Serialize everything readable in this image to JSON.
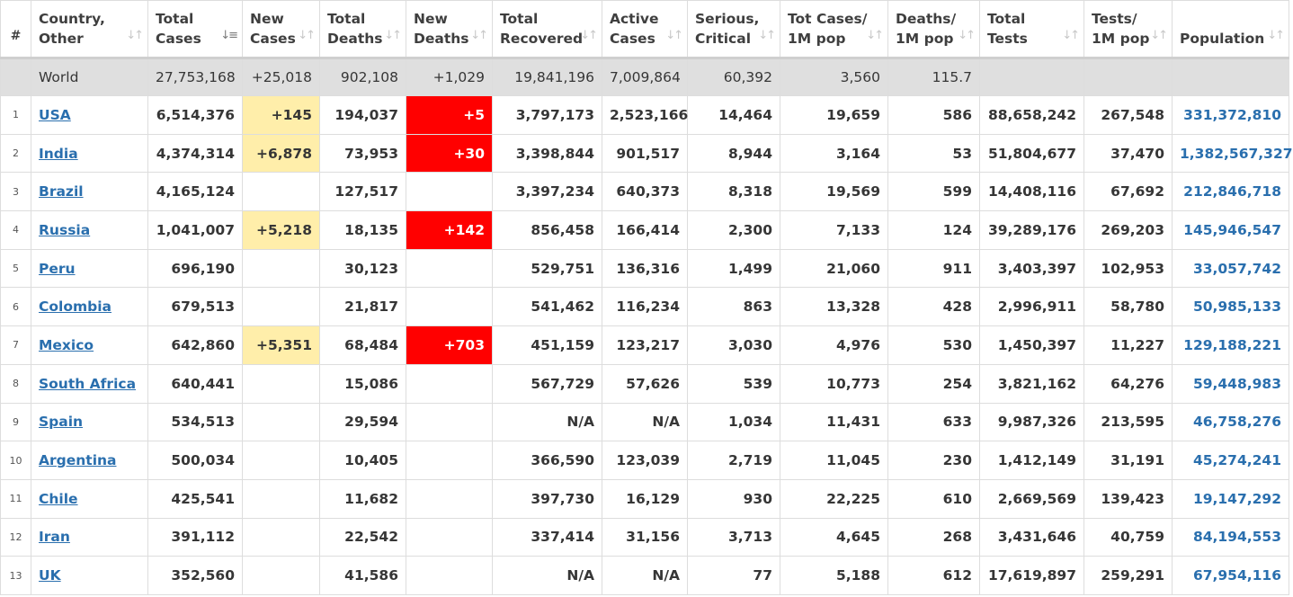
{
  "header": {
    "rank": "#",
    "country": [
      "Country,",
      "Other"
    ],
    "total_cases": [
      "Total",
      "Cases"
    ],
    "new_cases": [
      "New",
      "Cases"
    ],
    "total_deaths": [
      "Total",
      "Deaths"
    ],
    "new_deaths": [
      "New",
      "Deaths"
    ],
    "total_recovered": [
      "Total",
      "Recovered"
    ],
    "active_cases": [
      "Active",
      "Cases"
    ],
    "serious": [
      "Serious,",
      "Critical"
    ],
    "cases_per_1m": [
      "Tot Cases/",
      "1M pop"
    ],
    "deaths_per_1m": [
      "Deaths/",
      "1M pop"
    ],
    "total_tests": [
      "Total",
      "Tests"
    ],
    "tests_per_1m": [
      "Tests/",
      "1M pop"
    ],
    "population": "Population"
  },
  "icons": {
    "sort": "sort-arrows-icon",
    "sort_active": "sort-descending-icon"
  },
  "colors": {
    "new_cases_highlight": "#ffeeaa",
    "new_deaths_highlight": "#ff0000",
    "link": "#2a6fae",
    "world_row_bg": "#dfdfdf"
  },
  "world": {
    "country": "World",
    "total_cases": "27,753,168",
    "new_cases": "+25,018",
    "total_deaths": "902,108",
    "new_deaths": "+1,029",
    "total_recovered": "19,841,196",
    "active_cases": "7,009,864",
    "serious": "60,392",
    "cases_per_1m": "3,560",
    "deaths_per_1m": "115.7",
    "total_tests": "",
    "tests_per_1m": "",
    "population": ""
  },
  "rows": [
    {
      "rank": "1",
      "country": "USA",
      "total_cases": "6,514,376",
      "new_cases": "+145",
      "total_deaths": "194,037",
      "new_deaths": "+5",
      "total_recovered": "3,797,173",
      "active_cases": "2,523,166",
      "serious": "14,464",
      "cases_per_1m": "19,659",
      "deaths_per_1m": "586",
      "total_tests": "88,658,242",
      "tests_per_1m": "267,548",
      "population": "331,372,810"
    },
    {
      "rank": "2",
      "country": "India",
      "total_cases": "4,374,314",
      "new_cases": "+6,878",
      "total_deaths": "73,953",
      "new_deaths": "+30",
      "total_recovered": "3,398,844",
      "active_cases": "901,517",
      "serious": "8,944",
      "cases_per_1m": "3,164",
      "deaths_per_1m": "53",
      "total_tests": "51,804,677",
      "tests_per_1m": "37,470",
      "population": "1,382,567,327"
    },
    {
      "rank": "3",
      "country": "Brazil",
      "total_cases": "4,165,124",
      "new_cases": "",
      "total_deaths": "127,517",
      "new_deaths": "",
      "total_recovered": "3,397,234",
      "active_cases": "640,373",
      "serious": "8,318",
      "cases_per_1m": "19,569",
      "deaths_per_1m": "599",
      "total_tests": "14,408,116",
      "tests_per_1m": "67,692",
      "population": "212,846,718"
    },
    {
      "rank": "4",
      "country": "Russia",
      "total_cases": "1,041,007",
      "new_cases": "+5,218",
      "total_deaths": "18,135",
      "new_deaths": "+142",
      "total_recovered": "856,458",
      "active_cases": "166,414",
      "serious": "2,300",
      "cases_per_1m": "7,133",
      "deaths_per_1m": "124",
      "total_tests": "39,289,176",
      "tests_per_1m": "269,203",
      "population": "145,946,547"
    },
    {
      "rank": "5",
      "country": "Peru",
      "total_cases": "696,190",
      "new_cases": "",
      "total_deaths": "30,123",
      "new_deaths": "",
      "total_recovered": "529,751",
      "active_cases": "136,316",
      "serious": "1,499",
      "cases_per_1m": "21,060",
      "deaths_per_1m": "911",
      "total_tests": "3,403,397",
      "tests_per_1m": "102,953",
      "population": "33,057,742"
    },
    {
      "rank": "6",
      "country": "Colombia",
      "total_cases": "679,513",
      "new_cases": "",
      "total_deaths": "21,817",
      "new_deaths": "",
      "total_recovered": "541,462",
      "active_cases": "116,234",
      "serious": "863",
      "cases_per_1m": "13,328",
      "deaths_per_1m": "428",
      "total_tests": "2,996,911",
      "tests_per_1m": "58,780",
      "population": "50,985,133"
    },
    {
      "rank": "7",
      "country": "Mexico",
      "total_cases": "642,860",
      "new_cases": "+5,351",
      "total_deaths": "68,484",
      "new_deaths": "+703",
      "total_recovered": "451,159",
      "active_cases": "123,217",
      "serious": "3,030",
      "cases_per_1m": "4,976",
      "deaths_per_1m": "530",
      "total_tests": "1,450,397",
      "tests_per_1m": "11,227",
      "population": "129,188,221"
    },
    {
      "rank": "8",
      "country": "South Africa",
      "total_cases": "640,441",
      "new_cases": "",
      "total_deaths": "15,086",
      "new_deaths": "",
      "total_recovered": "567,729",
      "active_cases": "57,626",
      "serious": "539",
      "cases_per_1m": "10,773",
      "deaths_per_1m": "254",
      "total_tests": "3,821,162",
      "tests_per_1m": "64,276",
      "population": "59,448,983"
    },
    {
      "rank": "9",
      "country": "Spain",
      "total_cases": "534,513",
      "new_cases": "",
      "total_deaths": "29,594",
      "new_deaths": "",
      "total_recovered": "N/A",
      "active_cases": "N/A",
      "serious": "1,034",
      "cases_per_1m": "11,431",
      "deaths_per_1m": "633",
      "total_tests": "9,987,326",
      "tests_per_1m": "213,595",
      "population": "46,758,276"
    },
    {
      "rank": "10",
      "country": "Argentina",
      "total_cases": "500,034",
      "new_cases": "",
      "total_deaths": "10,405",
      "new_deaths": "",
      "total_recovered": "366,590",
      "active_cases": "123,039",
      "serious": "2,719",
      "cases_per_1m": "11,045",
      "deaths_per_1m": "230",
      "total_tests": "1,412,149",
      "tests_per_1m": "31,191",
      "population": "45,274,241"
    },
    {
      "rank": "11",
      "country": "Chile",
      "total_cases": "425,541",
      "new_cases": "",
      "total_deaths": "11,682",
      "new_deaths": "",
      "total_recovered": "397,730",
      "active_cases": "16,129",
      "serious": "930",
      "cases_per_1m": "22,225",
      "deaths_per_1m": "610",
      "total_tests": "2,669,569",
      "tests_per_1m": "139,423",
      "population": "19,147,292"
    },
    {
      "rank": "12",
      "country": "Iran",
      "total_cases": "391,112",
      "new_cases": "",
      "total_deaths": "22,542",
      "new_deaths": "",
      "total_recovered": "337,414",
      "active_cases": "31,156",
      "serious": "3,713",
      "cases_per_1m": "4,645",
      "deaths_per_1m": "268",
      "total_tests": "3,431,646",
      "tests_per_1m": "40,759",
      "population": "84,194,553"
    },
    {
      "rank": "13",
      "country": "UK",
      "total_cases": "352,560",
      "new_cases": "",
      "total_deaths": "41,586",
      "new_deaths": "",
      "total_recovered": "N/A",
      "active_cases": "N/A",
      "serious": "77",
      "cases_per_1m": "5,188",
      "deaths_per_1m": "612",
      "total_tests": "17,619,897",
      "tests_per_1m": "259,291",
      "population": "67,954,116"
    }
  ]
}
